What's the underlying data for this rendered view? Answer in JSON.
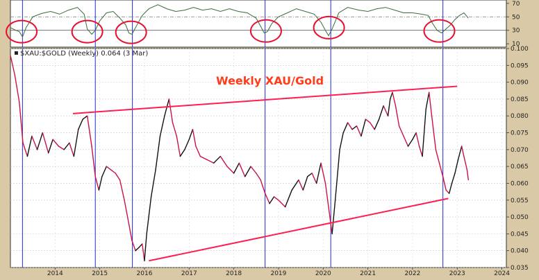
{
  "chart_data": {
    "type": "line",
    "header": "$XAU:$GOLD (Weekly) 0.064 (3 Mar)",
    "annotation": "Weekly XAU/Gold",
    "colors": {
      "price_up": "#111111",
      "price_down": "#cc1144",
      "channel_line": "#ff1e50",
      "cycle_line": "#1f2ad6",
      "cycle_circle": "#e8102e",
      "oscillator": "#3a6a3a",
      "annotation": "#ff3d1a",
      "panel_bg": "#ffffff",
      "frame_bg": "#d9c9a6"
    },
    "price_axis": {
      "ylim": [
        0.035,
        0.1
      ],
      "ticks": [
        0.035,
        0.04,
        0.045,
        0.05,
        0.055,
        0.06,
        0.065,
        0.07,
        0.075,
        0.08,
        0.085,
        0.09,
        0.095,
        0.1
      ],
      "tick_labels": [
        "0.035",
        "0.040",
        "0.045",
        "0.050",
        "0.055",
        "0.060",
        "0.065",
        "0.070",
        "0.075",
        "0.080",
        "0.085",
        "0.090",
        "0.095",
        "0.100"
      ]
    },
    "x_axis": {
      "xlim": [
        2013.0,
        2024.1
      ],
      "ticks": [
        2014,
        2015,
        2016,
        2017,
        2018,
        2019,
        2020,
        2021,
        2022,
        2023,
        2024
      ],
      "tick_labels": [
        "2014",
        "2015",
        "2016",
        "2017",
        "2018",
        "2019",
        "2020",
        "2021",
        "2022",
        "2023",
        "2024"
      ]
    },
    "osc_axis": {
      "ylim": [
        5,
        75
      ],
      "ticks": [
        10,
        30,
        50,
        70
      ],
      "tick_labels": [
        "10",
        "30",
        "50",
        "70"
      ],
      "dashed_levels": [
        50
      ],
      "solid_levels": [
        30
      ]
    },
    "series": [
      {
        "values": [
          [
            2013.0,
            0.098
          ],
          [
            2013.1,
            0.092
          ],
          [
            2013.2,
            0.084
          ],
          [
            2013.28,
            0.072
          ],
          [
            2013.38,
            0.068
          ],
          [
            2013.48,
            0.074
          ],
          [
            2013.6,
            0.07
          ],
          [
            2013.72,
            0.075
          ],
          [
            2013.85,
            0.069
          ],
          [
            2013.95,
            0.073
          ],
          [
            2014.08,
            0.071
          ],
          [
            2014.2,
            0.07
          ],
          [
            2014.32,
            0.072
          ],
          [
            2014.42,
            0.068
          ],
          [
            2014.52,
            0.076
          ],
          [
            2014.62,
            0.079
          ],
          [
            2014.72,
            0.08
          ],
          [
            2014.82,
            0.071
          ],
          [
            2014.9,
            0.062
          ],
          [
            2014.98,
            0.058
          ],
          [
            2015.05,
            0.062
          ],
          [
            2015.15,
            0.065
          ],
          [
            2015.25,
            0.064
          ],
          [
            2015.35,
            0.063
          ],
          [
            2015.45,
            0.061
          ],
          [
            2015.55,
            0.055
          ],
          [
            2015.65,
            0.048
          ],
          [
            2015.72,
            0.043
          ],
          [
            2015.8,
            0.04
          ],
          [
            2015.88,
            0.041
          ],
          [
            2015.95,
            0.042
          ],
          [
            2016.0,
            0.037
          ],
          [
            2016.05,
            0.045
          ],
          [
            2016.15,
            0.056
          ],
          [
            2016.25,
            0.064
          ],
          [
            2016.35,
            0.074
          ],
          [
            2016.45,
            0.08
          ],
          [
            2016.55,
            0.085
          ],
          [
            2016.63,
            0.078
          ],
          [
            2016.72,
            0.074
          ],
          [
            2016.8,
            0.068
          ],
          [
            2016.9,
            0.07
          ],
          [
            2017.0,
            0.073
          ],
          [
            2017.08,
            0.076
          ],
          [
            2017.15,
            0.071
          ],
          [
            2017.25,
            0.068
          ],
          [
            2017.4,
            0.067
          ],
          [
            2017.55,
            0.066
          ],
          [
            2017.7,
            0.068
          ],
          [
            2017.85,
            0.065
          ],
          [
            2018.0,
            0.063
          ],
          [
            2018.12,
            0.066
          ],
          [
            2018.25,
            0.062
          ],
          [
            2018.38,
            0.065
          ],
          [
            2018.5,
            0.063
          ],
          [
            2018.6,
            0.061
          ],
          [
            2018.7,
            0.057
          ],
          [
            2018.8,
            0.054
          ],
          [
            2018.9,
            0.056
          ],
          [
            2019.0,
            0.055
          ],
          [
            2019.15,
            0.053
          ],
          [
            2019.3,
            0.058
          ],
          [
            2019.45,
            0.061
          ],
          [
            2019.55,
            0.058
          ],
          [
            2019.65,
            0.062
          ],
          [
            2019.75,
            0.063
          ],
          [
            2019.85,
            0.06
          ],
          [
            2019.95,
            0.066
          ],
          [
            2020.05,
            0.06
          ],
          [
            2020.15,
            0.05
          ],
          [
            2020.2,
            0.045
          ],
          [
            2020.27,
            0.055
          ],
          [
            2020.37,
            0.07
          ],
          [
            2020.45,
            0.075
          ],
          [
            2020.55,
            0.078
          ],
          [
            2020.65,
            0.076
          ],
          [
            2020.75,
            0.077
          ],
          [
            2020.85,
            0.074
          ],
          [
            2020.95,
            0.079
          ],
          [
            2021.05,
            0.078
          ],
          [
            2021.15,
            0.076
          ],
          [
            2021.25,
            0.079
          ],
          [
            2021.35,
            0.083
          ],
          [
            2021.45,
            0.08
          ],
          [
            2021.5,
            0.085
          ],
          [
            2021.55,
            0.087
          ],
          [
            2021.62,
            0.083
          ],
          [
            2021.7,
            0.077
          ],
          [
            2021.8,
            0.074
          ],
          [
            2021.9,
            0.071
          ],
          [
            2022.0,
            0.073
          ],
          [
            2022.08,
            0.075
          ],
          [
            2022.15,
            0.071
          ],
          [
            2022.22,
            0.068
          ],
          [
            2022.3,
            0.082
          ],
          [
            2022.37,
            0.087
          ],
          [
            2022.43,
            0.08
          ],
          [
            2022.52,
            0.07
          ],
          [
            2022.6,
            0.066
          ],
          [
            2022.68,
            0.062
          ],
          [
            2022.75,
            0.058
          ],
          [
            2022.82,
            0.057
          ],
          [
            2022.88,
            0.06
          ],
          [
            2022.95,
            0.063
          ],
          [
            2023.02,
            0.067
          ],
          [
            2023.1,
            0.071
          ],
          [
            2023.15,
            0.068
          ],
          [
            2023.22,
            0.064
          ],
          [
            2023.25,
            0.061
          ]
        ]
      },
      {
        "values": [
          [
            2013.0,
            34
          ],
          [
            2013.12,
            30
          ],
          [
            2013.2,
            28
          ],
          [
            2013.27,
            20
          ],
          [
            2013.35,
            34
          ],
          [
            2013.5,
            50
          ],
          [
            2013.7,
            55
          ],
          [
            2013.9,
            58
          ],
          [
            2014.1,
            54
          ],
          [
            2014.3,
            60
          ],
          [
            2014.5,
            64
          ],
          [
            2014.65,
            54
          ],
          [
            2014.72,
            32
          ],
          [
            2014.82,
            24
          ],
          [
            2014.9,
            30
          ],
          [
            2015.0,
            44
          ],
          [
            2015.15,
            56
          ],
          [
            2015.3,
            58
          ],
          [
            2015.45,
            48
          ],
          [
            2015.58,
            38
          ],
          [
            2015.65,
            26
          ],
          [
            2015.72,
            24
          ],
          [
            2015.8,
            34
          ],
          [
            2015.95,
            52
          ],
          [
            2016.1,
            62
          ],
          [
            2016.3,
            68
          ],
          [
            2016.5,
            62
          ],
          [
            2016.7,
            58
          ],
          [
            2016.9,
            60
          ],
          [
            2017.1,
            64
          ],
          [
            2017.3,
            60
          ],
          [
            2017.5,
            62
          ],
          [
            2017.7,
            58
          ],
          [
            2017.9,
            62
          ],
          [
            2018.1,
            58
          ],
          [
            2018.3,
            56
          ],
          [
            2018.5,
            48
          ],
          [
            2018.6,
            36
          ],
          [
            2018.68,
            26
          ],
          [
            2018.75,
            28
          ],
          [
            2018.85,
            40
          ],
          [
            2019.0,
            50
          ],
          [
            2019.2,
            56
          ],
          [
            2019.4,
            62
          ],
          [
            2019.6,
            58
          ],
          [
            2019.8,
            54
          ],
          [
            2019.95,
            42
          ],
          [
            2020.05,
            30
          ],
          [
            2020.12,
            22
          ],
          [
            2020.2,
            32
          ],
          [
            2020.35,
            56
          ],
          [
            2020.55,
            64
          ],
          [
            2020.8,
            60
          ],
          [
            2021.0,
            58
          ],
          [
            2021.2,
            62
          ],
          [
            2021.4,
            64
          ],
          [
            2021.6,
            60
          ],
          [
            2021.8,
            56
          ],
          [
            2022.0,
            56
          ],
          [
            2022.2,
            54
          ],
          [
            2022.35,
            52
          ],
          [
            2022.45,
            40
          ],
          [
            2022.55,
            30
          ],
          [
            2022.65,
            26
          ],
          [
            2022.75,
            32
          ],
          [
            2022.85,
            38
          ],
          [
            2022.95,
            46
          ],
          [
            2023.05,
            52
          ],
          [
            2023.15,
            56
          ],
          [
            2023.25,
            48
          ]
        ]
      }
    ],
    "trendlines": [
      {
        "from": [
          2014.4,
          0.0807
        ],
        "to": [
          2023.0,
          0.0888
        ]
      },
      {
        "from": [
          2016.1,
          0.037
        ],
        "to": [
          2022.8,
          0.0555
        ]
      }
    ],
    "cycle_lines": [
      2013.27,
      2014.9,
      2015.73,
      2018.7,
      2020.17,
      2022.68
    ],
    "cycle_circles": [
      {
        "x": 2013.25,
        "y": 28
      },
      {
        "x": 2014.72,
        "y": 28
      },
      {
        "x": 2015.7,
        "y": 27
      },
      {
        "x": 2018.72,
        "y": 29
      },
      {
        "x": 2020.13,
        "y": 34
      },
      {
        "x": 2022.6,
        "y": 29
      }
    ]
  }
}
